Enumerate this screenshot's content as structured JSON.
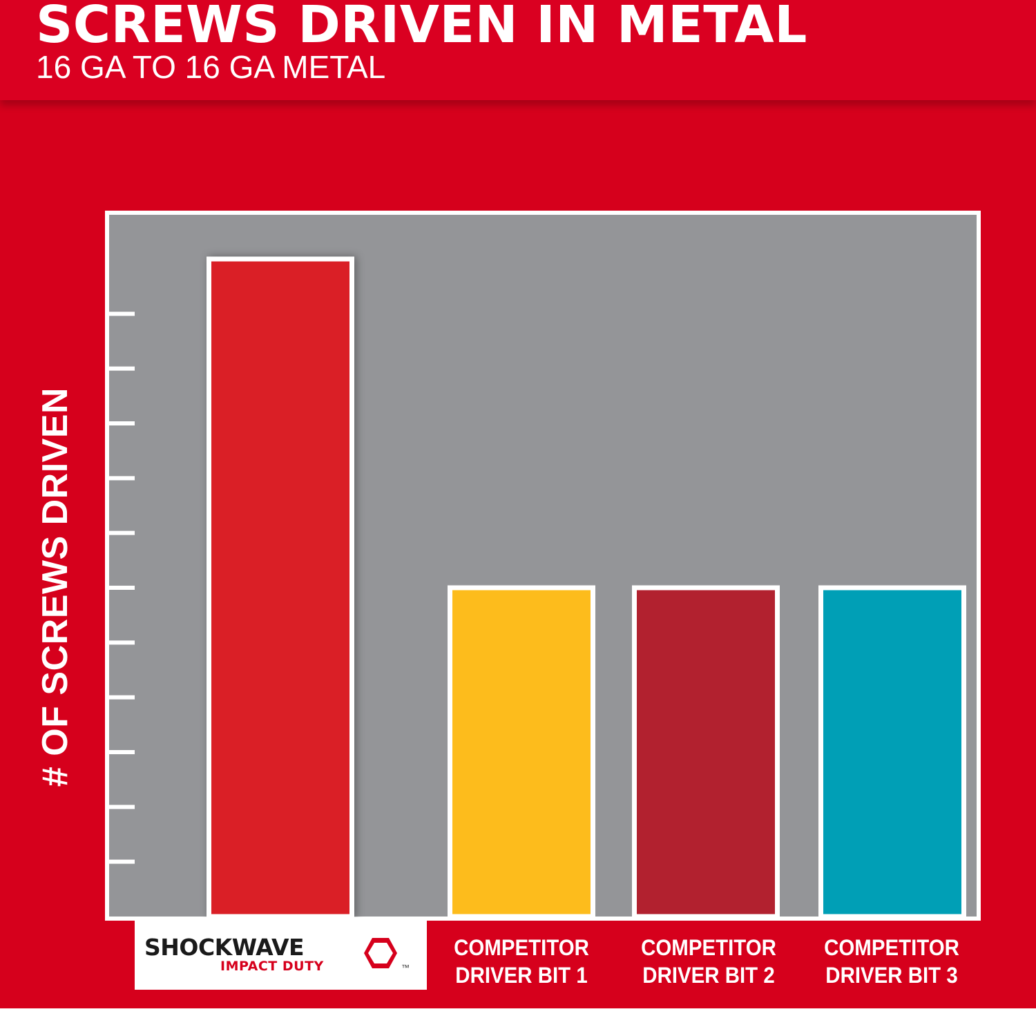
{
  "title": "SCREWS DRIVEN IN METAL",
  "subtitle": "16 GA TO 16 GA METAL",
  "chart_data": {
    "type": "bar",
    "title": "SCREWS DRIVEN IN METAL",
    "subtitle": "16 GA TO 16 GA METAL",
    "ylabel": "# OF SCREWS DRIVEN",
    "xlabel": "",
    "ylim": [
      0,
      12
    ],
    "yticks": [
      1,
      2,
      3,
      4,
      5,
      6,
      7,
      8,
      9,
      10,
      11
    ],
    "categories": [
      {
        "brand": "SHOCKWAVE",
        "sub": "IMPACT DUTY",
        "mark": "™"
      },
      {
        "line1": "COMPETITOR",
        "line2": "DRIVER BIT 1"
      },
      {
        "line1": "COMPETITOR",
        "line2": "DRIVER BIT 2"
      },
      {
        "line1": "COMPETITOR",
        "line2": "DRIVER BIT 3"
      }
    ],
    "values": [
      12,
      6,
      6,
      6
    ],
    "colors": [
      "#da1f26",
      "#fdbc1c",
      "#b2212f",
      "#009fb6"
    ],
    "plot_background": "#949598",
    "grid": false
  }
}
